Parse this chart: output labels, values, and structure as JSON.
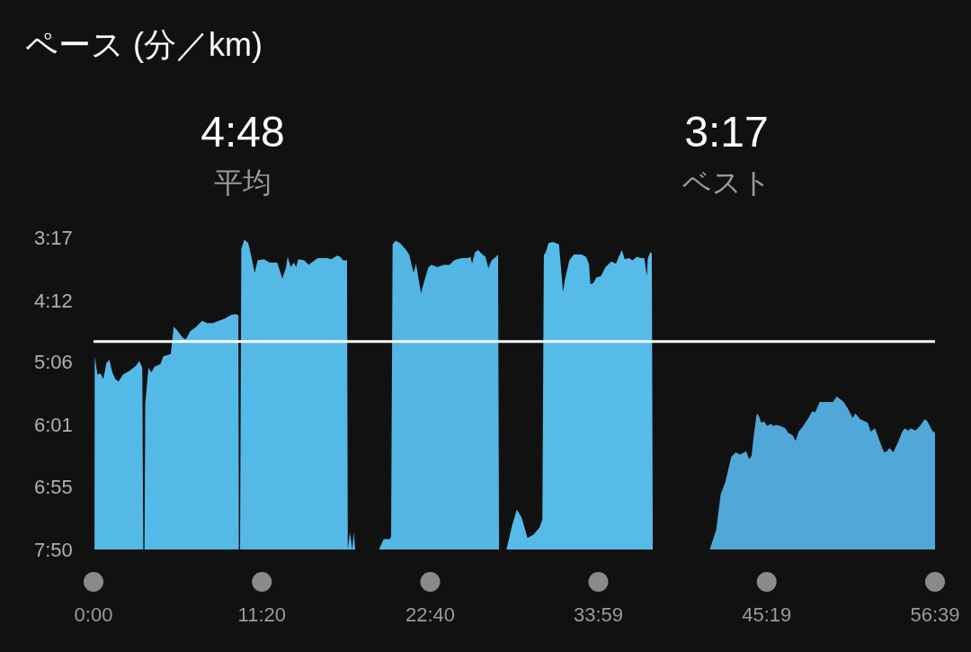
{
  "chart_data": {
    "type": "area",
    "title": "ペース (分／km)",
    "annotations": [
      "4:48",
      "平均",
      "3:17",
      "ベスト"
    ],
    "xlim": [
      0,
      3399
    ],
    "xticks": [
      {
        "value": 0,
        "label": "0:00"
      },
      {
        "value": 680,
        "label": "11:20"
      },
      {
        "value": 1360,
        "label": "22:40"
      },
      {
        "value": 2039,
        "label": "33:59"
      },
      {
        "value": 2719,
        "label": "45:19"
      },
      {
        "value": 3399,
        "label": "56:39"
      }
    ],
    "ylim": [
      470,
      197
    ],
    "yticks": [
      {
        "value": 197,
        "label": "3:17"
      },
      {
        "value": 252,
        "label": "4:12"
      },
      {
        "value": 306,
        "label": "5:06"
      },
      {
        "value": 361,
        "label": "6:01"
      },
      {
        "value": 415,
        "label": "6:55"
      },
      {
        "value": 470,
        "label": "7:50"
      }
    ],
    "ref_lines": [
      {
        "axis": "y",
        "value": 288,
        "color": "#ffffff"
      }
    ],
    "series": [
      {
        "color": "#55b9e7",
        "x": [
          4,
          5,
          16,
          28,
          40,
          52,
          64,
          76,
          88,
          101,
          119,
          143,
          161,
          173,
          185,
          197,
          201,
          206,
          209,
          222,
          234,
          246,
          270,
          282,
          312,
          324,
          337,
          361,
          373,
          391,
          415,
          439,
          458,
          482,
          506,
          530,
          554,
          573,
          585,
          587,
          592,
          597,
          609,
          625,
          639,
          651,
          663,
          688,
          712,
          742,
          763,
          778,
          784,
          797,
          809,
          818,
          827,
          851,
          869,
          893,
          905,
          942,
          960,
          984,
          996,
          1008,
          1024,
          1027,
          1036,
          1045,
          1051,
          1057
        ],
        "values": [
          470,
          301,
          317,
          316,
          321,
          307,
          304,
          315,
          321,
          323,
          317,
          314,
          311,
          309,
          305,
          311,
          470,
          470,
          343,
          311,
          315,
          310,
          308,
          301,
          299,
          275,
          278,
          285,
          286,
          279,
          275,
          270,
          272,
          272,
          270,
          268,
          265,
          264,
          265,
          470,
          470,
          207,
          199,
          202,
          215,
          228,
          217,
          216,
          219,
          219,
          233,
          223,
          214,
          223,
          219,
          223,
          216,
          217,
          221,
          217,
          215,
          215,
          216,
          213,
          214,
          217,
          217,
          470,
          455,
          470,
          455,
          470
        ]
      },
      {
        "color": "#53b6e4",
        "x": [
          1153,
          1172,
          1196,
          1202,
          1208,
          1220,
          1238,
          1263,
          1275,
          1287,
          1293,
          1303,
          1315,
          1323,
          1335,
          1353,
          1365,
          1390,
          1414,
          1438,
          1456,
          1486,
          1511,
          1523,
          1529,
          1541,
          1553,
          1571,
          1583,
          1595,
          1608,
          1626,
          1634,
          1638
        ],
        "values": [
          470,
          461,
          461,
          459,
          203,
          200,
          202,
          208,
          212,
          223,
          228,
          220,
          236,
          246,
          236,
          223,
          221,
          223,
          221,
          221,
          217,
          215,
          215,
          214,
          220,
          210,
          208,
          212,
          214,
          224,
          217,
          214,
          212,
          470
        ]
      },
      {
        "color": "#57bbe9",
        "x": [
          1668,
          1680,
          1692,
          1710,
          1729,
          1753,
          1777,
          1801,
          1813,
          1819,
          1825,
          1838,
          1856,
          1880,
          1892,
          1896,
          1904,
          1922,
          1940,
          1971,
          1989,
          2001,
          2007,
          2019,
          2031,
          2049,
          2068,
          2092,
          2110,
          2122,
          2134,
          2146,
          2164,
          2176,
          2195,
          2213,
          2225,
          2235,
          2239,
          2249,
          2255,
          2259
        ],
        "values": [
          470,
          459,
          448,
          435,
          442,
          460,
          457,
          451,
          444,
          212,
          211,
          202,
          201,
          203,
          233,
          245,
          234,
          217,
          212,
          212,
          214,
          220,
          238,
          237,
          232,
          231,
          223,
          218,
          220,
          214,
          208,
          216,
          215,
          217,
          214,
          215,
          215,
          231,
          215,
          210,
          211,
          470
        ]
      },
      {
        "color": "#50a8d8",
        "x": [
          2489,
          2515,
          2533,
          2552,
          2576,
          2594,
          2612,
          2636,
          2648,
          2658,
          2667,
          2679,
          2687,
          2697,
          2709,
          2721,
          2736,
          2745,
          2757,
          2776,
          2794,
          2806,
          2824,
          2836,
          2848,
          2866,
          2885,
          2903,
          2915,
          2933,
          2975,
          2987,
          3002,
          3030,
          3048,
          3066,
          3078,
          3096,
          3127,
          3139,
          3157,
          3175,
          3193,
          3205,
          3215,
          3230,
          3248,
          3266,
          3278,
          3290,
          3302,
          3320,
          3338,
          3357,
          3369,
          3387,
          3399,
          3399
        ],
        "values": [
          470,
          453,
          422,
          411,
          389,
          385,
          387,
          384,
          391,
          388,
          370,
          351,
          353,
          359,
          358,
          362,
          360,
          362,
          361,
          362,
          364,
          368,
          370,
          375,
          367,
          362,
          356,
          349,
          350,
          341,
          341,
          341,
          336,
          341,
          347,
          355,
          351,
          356,
          359,
          367,
          364,
          375,
          385,
          384,
          381,
          385,
          377,
          367,
          364,
          366,
          364,
          366,
          362,
          356,
          358,
          366,
          368,
          470
        ]
      }
    ]
  }
}
